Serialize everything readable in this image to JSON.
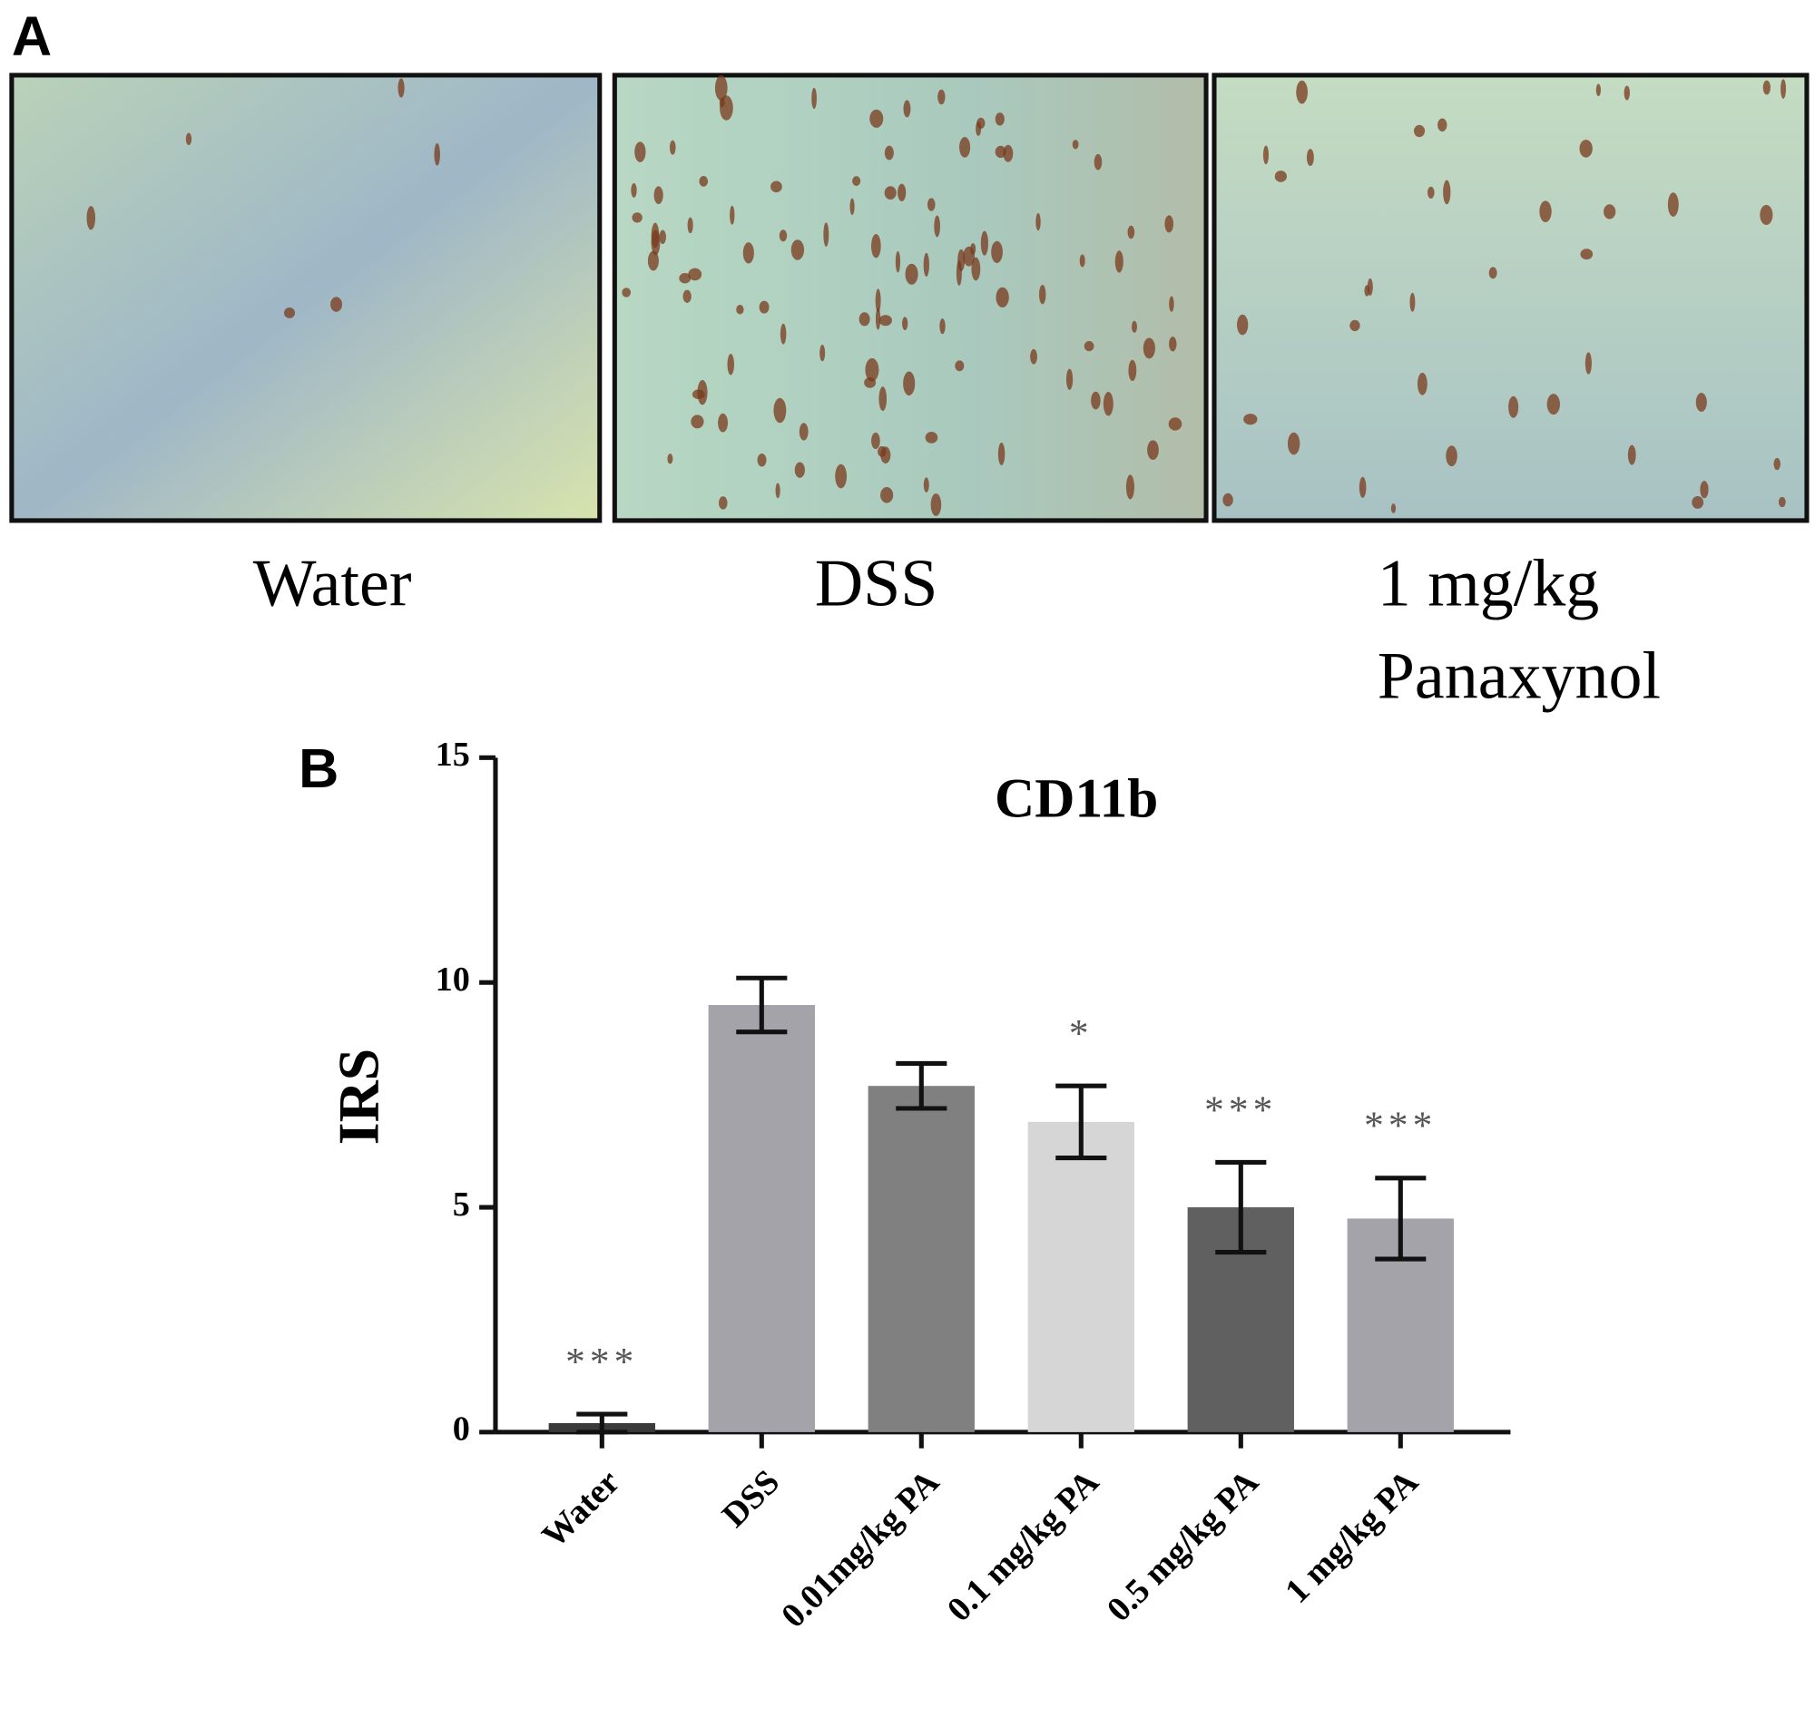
{
  "panel_a": {
    "label": "A",
    "captions": [
      [
        "Water"
      ],
      [
        "DSS"
      ],
      [
        "1 mg/kg",
        "Panaxynol"
      ]
    ]
  },
  "chart_data": {
    "type": "bar",
    "panel_label": "B",
    "title": "CD11b",
    "y_label": "IRS",
    "categories": [
      "Water",
      "DSS",
      "0.01mg/kg PA",
      "0.1 mg/kg PA",
      "0.5 mg/kg PA",
      "1 mg/kg PA"
    ],
    "values": [
      0.2,
      9.5,
      7.7,
      6.9,
      5.0,
      4.75
    ],
    "errors": [
      0.2,
      0.6,
      0.5,
      0.8,
      1.0,
      0.9
    ],
    "colors": [
      "#3a3a3a",
      "#a4a3a9",
      "#808080",
      "#d6d6d6",
      "#606060",
      "#a4a3a9"
    ],
    "annotations": [
      "***",
      null,
      null,
      "*",
      "***",
      "***"
    ],
    "ylim": [
      0,
      15
    ],
    "yticks": [
      0,
      5,
      10,
      15
    ]
  }
}
